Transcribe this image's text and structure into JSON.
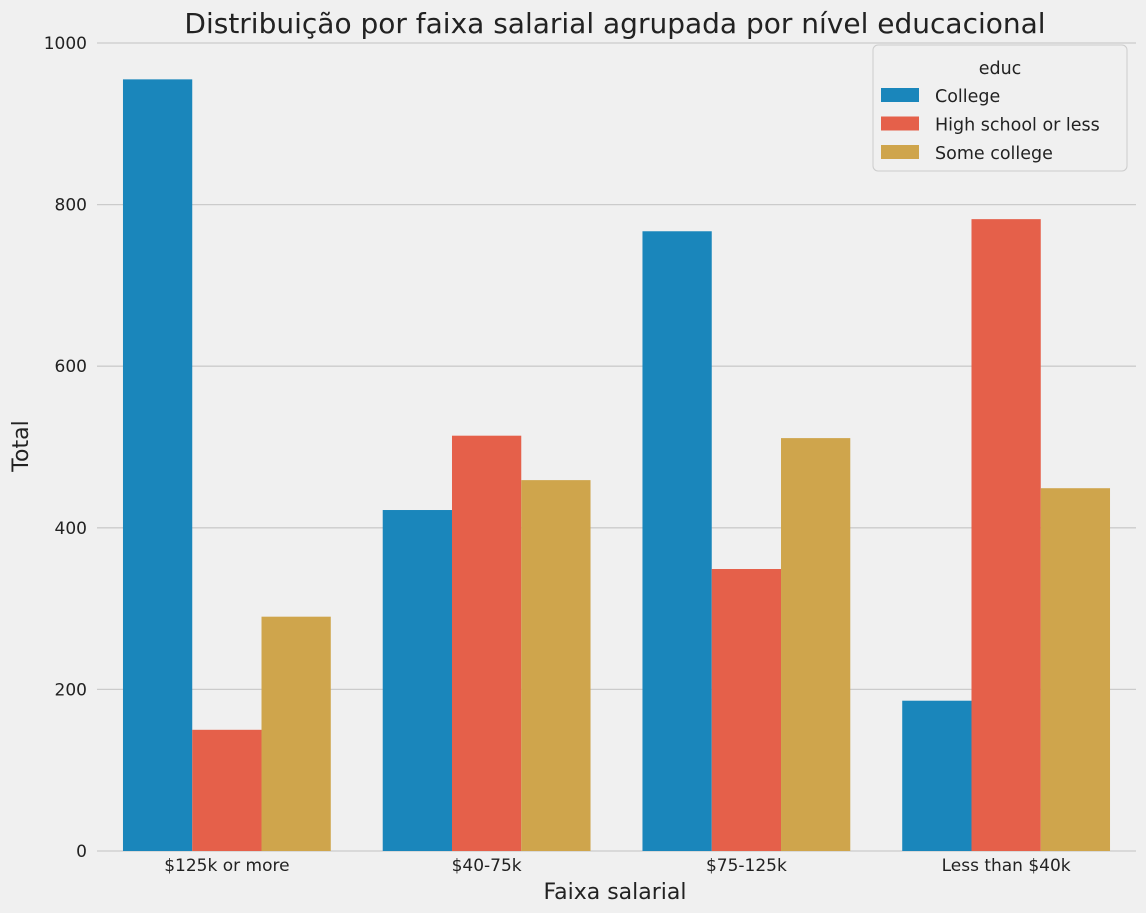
{
  "chart_data": {
    "type": "bar",
    "title": "Distribuição por faixa salarial agrupada por nível educacional",
    "xlabel": "Faixa salarial",
    "ylabel": "Total",
    "categories": [
      "$125k or more",
      "$40-75k",
      "$75-125k",
      "Less than $40k"
    ],
    "series": [
      {
        "name": "College",
        "color": "#1a86bb",
        "values": [
          955,
          422,
          767,
          186
        ]
      },
      {
        "name": "High school or less",
        "color": "#e5604a",
        "values": [
          150,
          514,
          349,
          782
        ]
      },
      {
        "name": "Some college",
        "color": "#cfa54c",
        "values": [
          290,
          459,
          511,
          449
        ]
      }
    ],
    "ylim": [
      0,
      1000
    ],
    "yticks": [
      "0",
      "200",
      "400",
      "600",
      "800",
      "1000"
    ],
    "legend": {
      "title": "educ",
      "placement": "top-right"
    },
    "grid": true,
    "background": "#f0f0f0",
    "grid_color": "#cbcbcb"
  }
}
